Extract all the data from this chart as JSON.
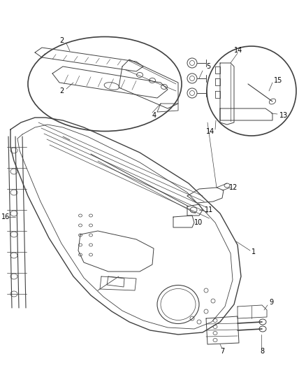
{
  "bg_color": "#ffffff",
  "line_color": "#404040",
  "label_color": "#000000",
  "fig_width": 4.39,
  "fig_height": 5.33,
  "dpi": 100
}
